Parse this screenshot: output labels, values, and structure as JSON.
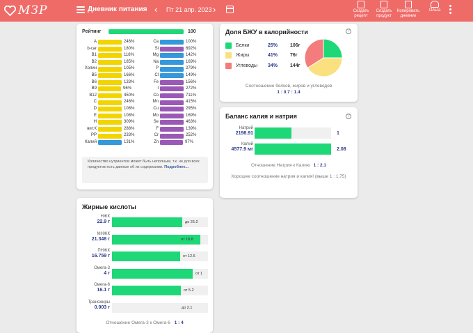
{
  "header": {
    "logo": "МЗР",
    "title": "Дневник питания",
    "date": "Пт 21 апр. 2023",
    "buttons": [
      {
        "l1": "Создать",
        "l2": "рецепт"
      },
      {
        "l1": "Создать",
        "l2": "продукт"
      },
      {
        "l1": "Копировать",
        "l2": "дневник"
      },
      {
        "l1": "Ольга",
        "l2": ""
      }
    ],
    "icons": [
      "heart-logo-icon",
      "hamburger-icon",
      "chevron-left-icon",
      "chevron-right-icon",
      "calendar-icon",
      "recipe-icon",
      "product-icon",
      "copy-icon",
      "user-icon",
      "more-vertical-icon"
    ]
  },
  "colors": {
    "header": "#ef6b68",
    "green": "#1ed878",
    "yellow": "#f2d500",
    "blue": "#3498db",
    "purple": "#9b59b6",
    "red": "#f47c7c",
    "pie_yellow": "#fbe07f"
  },
  "vitamins": {
    "rating_label": "Рейтинг",
    "rating_value": "100",
    "rating_fill": 1.0,
    "left": [
      {
        "name": "A",
        "pct": "246%",
        "fill": 1.0
      },
      {
        "name": "b-car",
        "pct": "180%",
        "fill": 1.0
      },
      {
        "name": "B1",
        "pct": "118%",
        "fill": 1.0
      },
      {
        "name": "B2",
        "pct": "185%",
        "fill": 1.0
      },
      {
        "name": "Холин",
        "pct": "105%",
        "fill": 1.0
      },
      {
        "name": "B5",
        "pct": "166%",
        "fill": 1.0
      },
      {
        "name": "B6",
        "pct": "133%",
        "fill": 1.0
      },
      {
        "name": "B9",
        "pct": "96%",
        "fill": 0.96
      },
      {
        "name": "B12",
        "pct": "450%",
        "fill": 1.0
      },
      {
        "name": "C",
        "pct": "246%",
        "fill": 1.0
      },
      {
        "name": "D",
        "pct": "108%",
        "fill": 1.0
      },
      {
        "name": "E",
        "pct": "108%",
        "fill": 1.0
      },
      {
        "name": "H",
        "pct": "309%",
        "fill": 1.0
      },
      {
        "name": "вит.К",
        "pct": "288%",
        "fill": 1.0
      },
      {
        "name": "PP",
        "pct": "233%",
        "fill": 1.0
      },
      {
        "name": "Калий",
        "pct": "131%",
        "fill": 1.0,
        "kind": "blue"
      }
    ],
    "right": [
      {
        "name": "Ca",
        "pct": "100%",
        "fill": 1.0,
        "kind": "blue"
      },
      {
        "name": "Si",
        "pct": "692%",
        "fill": 1.0,
        "kind": "purple"
      },
      {
        "name": "Mg",
        "pct": "142%",
        "fill": 1.0,
        "kind": "blue"
      },
      {
        "name": "Na",
        "pct": "169%",
        "fill": 1.0,
        "kind": "blue"
      },
      {
        "name": "P",
        "pct": "279%",
        "fill": 1.0,
        "kind": "blue"
      },
      {
        "name": "Cl",
        "pct": "149%",
        "fill": 1.0,
        "kind": "blue"
      },
      {
        "name": "Fe",
        "pct": "156%",
        "fill": 1.0,
        "kind": "purple"
      },
      {
        "name": "I",
        "pct": "272%",
        "fill": 1.0,
        "kind": "purple"
      },
      {
        "name": "Co",
        "pct": "711%",
        "fill": 1.0,
        "kind": "purple"
      },
      {
        "name": "Mn",
        "pct": "415%",
        "fill": 1.0,
        "kind": "purple"
      },
      {
        "name": "Cu",
        "pct": "295%",
        "fill": 1.0,
        "kind": "purple"
      },
      {
        "name": "Mo",
        "pct": "169%",
        "fill": 1.0,
        "kind": "purple"
      },
      {
        "name": "Se",
        "pct": "463%",
        "fill": 1.0,
        "kind": "purple"
      },
      {
        "name": "F",
        "pct": "139%",
        "fill": 1.0,
        "kind": "purple"
      },
      {
        "name": "Cr",
        "pct": "252%",
        "fill": 1.0,
        "kind": "purple"
      },
      {
        "name": "Zn",
        "pct": "97%",
        "fill": 0.97,
        "kind": "purple"
      }
    ],
    "note_text": "Количество нутриентов может быть неполным, т.к. не для всех продуктов есть данные об их содержании.",
    "note_link": "Подробнее..."
  },
  "fatty": {
    "title": "Жирные кислоты",
    "rows": [
      {
        "name": "НЖК",
        "value": "22.9 г",
        "limit": "до 25.2",
        "fill": 0.73
      },
      {
        "name": "МНЖК",
        "value": "21.348 г",
        "limit": "от 18.8",
        "fill": 0.92
      },
      {
        "name": "ПНЖК",
        "value": "16.759 г",
        "limit": "от 12.6",
        "fill": 0.71
      },
      {
        "name": "Омега-3",
        "value": "4 г",
        "limit": "от 1",
        "fill": 0.84
      },
      {
        "name": "Омега-6",
        "value": "16.1 г",
        "limit": "от 5.2",
        "fill": 0.72
      },
      {
        "name": "Трансжиры",
        "value": "0.003 г",
        "limit": "до 2.1",
        "fill": 0.0
      }
    ],
    "ratio_text": "Отношение Омега-3 к Омега-6",
    "ratio_value": "1 : 4"
  },
  "bju": {
    "title": "Доля БЖУ в калорийности",
    "items": [
      {
        "name": "Белки",
        "pct": "25%",
        "grams": "106г",
        "share": 25,
        "color": "#1ed878"
      },
      {
        "name": "Жиры",
        "pct": "41%",
        "grams": "76г",
        "share": 41,
        "color": "#fbe07f"
      },
      {
        "name": "Углеводы",
        "pct": "34%",
        "grams": "144г",
        "share": 34,
        "color": "#f47c7c"
      }
    ],
    "ratio_text": "Соотношение белков, жиров и углеводов",
    "ratio_value": "1 : 0.7 : 1.4"
  },
  "kna": {
    "title": "Баланс калия и натрия",
    "rows": [
      {
        "name": "Натрий",
        "value": "2198.91",
        "ratio": "1",
        "fill": 0.48
      },
      {
        "name": "Калий",
        "value": "4577.9 мг",
        "ratio": "2.08",
        "fill": 1.0
      }
    ],
    "ratio_text": "Отношение Натрия к Калию",
    "ratio_value": "1 : 2.1",
    "comment": "Хорошее соотношение натрия и калия! (выше 1 : 1,75)"
  }
}
